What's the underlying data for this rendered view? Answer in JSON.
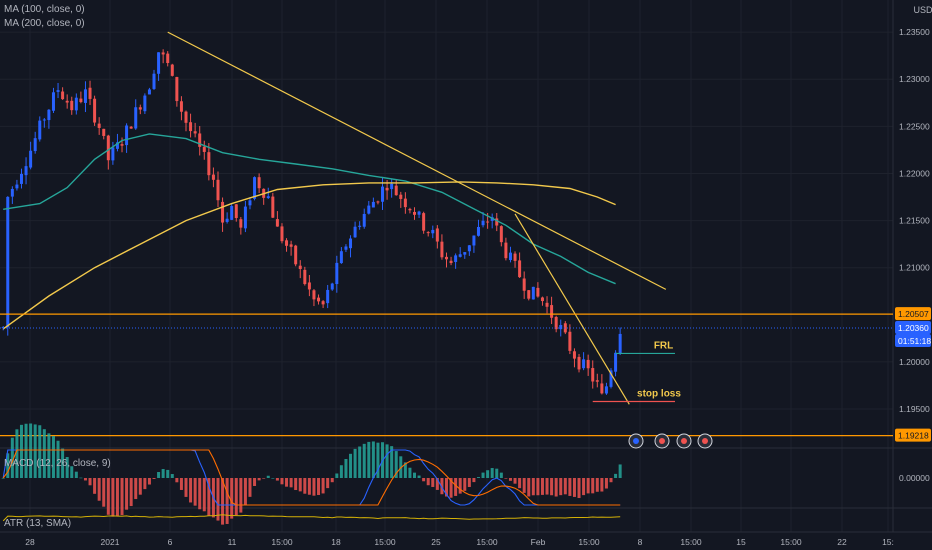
{
  "indicators": {
    "ma100": "MA (100, close, 0)",
    "ma200": "MA (200, close, 0)",
    "macd": "MACD (12, 26, close, 9)",
    "atr": "ATR (13, SMA)"
  },
  "currency": "USD",
  "price_badges": {
    "level_top": "1.20507",
    "last_price": "1.20360",
    "countdown": "01:51:18",
    "level_bottom": "1.19218"
  },
  "annotations": {
    "frl": "FRL",
    "stop_loss": "stop loss"
  },
  "macd_zero": "0.00000",
  "colors": {
    "background": "#131722",
    "grid": "#1e222d",
    "up": "#2962ff",
    "down": "#ef5350",
    "ma100": "#26a69a",
    "ma200": "#f2c94c",
    "trendline": "#f2c94c",
    "level": "#ff9800",
    "last_price": "#2962ff",
    "frl_line": "#26a69a",
    "stop_line": "#ef5350",
    "macd_line": "#2962ff",
    "signal_line": "#ff6d00",
    "atr": "#d4b106"
  },
  "chart_data": {
    "type": "candlestick",
    "price_ticks": [
      "1.23500",
      "1.23000",
      "1.22500",
      "1.22000",
      "1.21500",
      "1.21000",
      "1.20000",
      "1.19500"
    ],
    "y_range": [
      1.1915,
      1.2365
    ],
    "x_tick_labels": [
      "28",
      "2021",
      "6",
      "11",
      "15:00",
      "18",
      "15:00",
      "25",
      "15:00",
      "Feb",
      "15:00",
      "8",
      "15:00",
      "15",
      "15:00",
      "22",
      "15:"
    ],
    "ohlc_path": [
      [
        1,
        1.2175
      ],
      [
        3,
        1.2195
      ],
      [
        6,
        1.2225
      ],
      [
        9,
        1.226
      ],
      [
        12,
        1.229
      ],
      [
        15,
        1.227
      ],
      [
        18,
        1.2285
      ],
      [
        21,
        1.225
      ],
      [
        23,
        1.2215
      ],
      [
        26,
        1.2235
      ],
      [
        29,
        1.2265
      ],
      [
        32,
        1.2295
      ],
      [
        34,
        1.233
      ],
      [
        36,
        1.2315
      ],
      [
        38,
        1.228
      ],
      [
        40,
        1.2255
      ],
      [
        43,
        1.2225
      ],
      [
        46,
        1.2195
      ],
      [
        48,
        1.215
      ],
      [
        50,
        1.2165
      ],
      [
        52,
        1.214
      ],
      [
        55,
        1.2195
      ],
      [
        58,
        1.2175
      ],
      [
        60,
        1.214
      ],
      [
        63,
        1.2115
      ],
      [
        66,
        1.2085
      ],
      [
        68,
        1.2065
      ],
      [
        70,
        1.206
      ],
      [
        72,
        1.2085
      ],
      [
        75,
        1.2125
      ],
      [
        78,
        1.215
      ],
      [
        81,
        1.217
      ],
      [
        84,
        1.219
      ],
      [
        87,
        1.2175
      ],
      [
        90,
        1.216
      ],
      [
        92,
        1.2145
      ],
      [
        94,
        1.2135
      ],
      [
        96,
        1.2115
      ],
      [
        98,
        1.2105
      ],
      [
        101,
        1.212
      ],
      [
        104,
        1.214
      ],
      [
        107,
        1.2155
      ],
      [
        109,
        1.2125
      ],
      [
        112,
        1.21
      ],
      [
        115,
        1.2075
      ],
      [
        118,
        1.2065
      ],
      [
        120,
        1.205
      ],
      [
        122,
        1.2035
      ],
      [
        124,
        1.2015
      ],
      [
        126,
        1.2
      ],
      [
        128,
        1.199
      ],
      [
        130,
        1.1975
      ],
      [
        131,
        1.1962
      ],
      [
        132,
        1.1975
      ],
      [
        133,
        1.1995
      ],
      [
        134,
        1.2015
      ],
      [
        135,
        1.2036
      ]
    ],
    "ma100": [
      [
        0,
        1.2162
      ],
      [
        8,
        1.2168
      ],
      [
        14,
        1.2185
      ],
      [
        20,
        1.2215
      ],
      [
        26,
        1.2235
      ],
      [
        32,
        1.2242
      ],
      [
        40,
        1.2237
      ],
      [
        48,
        1.2222
      ],
      [
        56,
        1.2215
      ],
      [
        64,
        1.221
      ],
      [
        72,
        1.2205
      ],
      [
        80,
        1.2198
      ],
      [
        88,
        1.2192
      ],
      [
        96,
        1.218
      ],
      [
        104,
        1.216
      ],
      [
        110,
        1.2145
      ],
      [
        116,
        1.2125
      ],
      [
        122,
        1.2112
      ],
      [
        128,
        1.2095
      ],
      [
        134,
        1.2083
      ]
    ],
    "ma200": [
      [
        0,
        1.2035
      ],
      [
        10,
        1.207
      ],
      [
        20,
        1.21
      ],
      [
        30,
        1.2125
      ],
      [
        40,
        1.215
      ],
      [
        50,
        1.2168
      ],
      [
        60,
        1.2183
      ],
      [
        70,
        1.2188
      ],
      [
        80,
        1.219
      ],
      [
        90,
        1.219
      ],
      [
        100,
        1.2191
      ],
      [
        108,
        1.219
      ],
      [
        116,
        1.2188
      ],
      [
        124,
        1.2184
      ],
      [
        130,
        1.2175
      ],
      [
        134,
        1.2167
      ]
    ],
    "trendlines": [
      {
        "from": [
          36,
          1.235
        ],
        "to": [
          145,
          1.2077
        ]
      },
      {
        "from": [
          112,
          1.2157
        ],
        "to": [
          137,
          1.1955
        ]
      }
    ],
    "levels": [
      1.20507,
      1.19218
    ],
    "last_price": 1.2036,
    "frl": 1.2009,
    "stop_loss": 1.1958,
    "macd_zero_label": "0.00000"
  }
}
